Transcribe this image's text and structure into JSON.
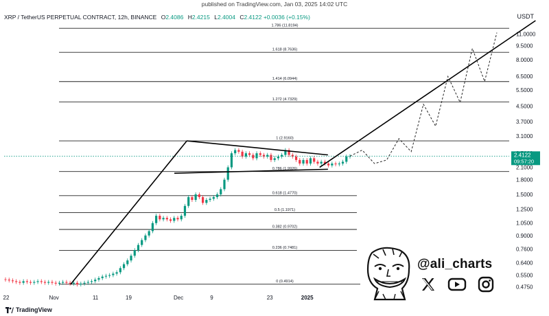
{
  "header": {
    "published": "published on TradingView.com, Jan 03, 2025 14:02 UTC",
    "symbol": "XRP / TetherUS PERPETUAL CONTRACT, 12h, BINANCE",
    "open_label": "O",
    "open": "2.4086",
    "high_label": "H",
    "high": "2.4215",
    "low_label": "L",
    "low": "2.4004",
    "close_label": "C",
    "close": "2.4122",
    "change": "+0.0036 (+0.15%)",
    "quote_currency": "USDT"
  },
  "price_tag": {
    "price": "2.4122",
    "countdown": "09:57:20"
  },
  "branding": {
    "tradingview": "TradingView"
  },
  "author": {
    "handle": "@ali_charts",
    "icons": [
      "x-logo-icon",
      "youtube-icon",
      "instagram-icon"
    ]
  },
  "colors": {
    "up": "#089981",
    "down": "#f23645",
    "line": "#000000",
    "grid_level": "#222222",
    "price_tag": "#089981",
    "dotted_price": "#089981"
  },
  "chart_data": {
    "type": "candlestick",
    "scale": "log",
    "ylim": [
      0.45,
      13
    ],
    "y_ticks": [
      "11.0000",
      "9.5000",
      "8.0000",
      "6.5000",
      "5.5000",
      "4.5000",
      "3.7000",
      "3.1000",
      "2.5000",
      "2.1000",
      "1.8000",
      "1.5000",
      "1.2500",
      "1.0500",
      "0.9000",
      "0.7600",
      "0.6400",
      "0.5500",
      "0.4750"
    ],
    "x_ticks": [
      "22",
      "Nov",
      "11",
      "19",
      "Dec",
      "9",
      "23",
      "2025"
    ],
    "last_price": 2.4122,
    "fib_levels": [
      {
        "label": "1.786 (11.8194)",
        "value": 11.8194
      },
      {
        "label": "1.618 (8.7636)",
        "value": 8.7636
      },
      {
        "label": "1.414 (6.0944)",
        "value": 6.0944
      },
      {
        "label": "1.272 (4.7329)",
        "value": 4.7329
      },
      {
        "label": "1 (2.9160)",
        "value": 2.916
      },
      {
        "label": "0.786 (1.9926)",
        "value": 1.9926
      },
      {
        "label": "0.618 (1.4770)",
        "value": 1.477
      },
      {
        "label": "0.5 (1.1971)",
        "value": 1.1971
      },
      {
        "label": "0.382 (0.9702)",
        "value": 0.9702
      },
      {
        "label": "0.236 (0.7481)",
        "value": 0.7481
      },
      {
        "label": "0 (0.4914)",
        "value": 0.4914
      }
    ],
    "price_path": [
      0.52,
      0.515,
      0.51,
      0.505,
      0.5,
      0.51,
      0.505,
      0.5,
      0.505,
      0.51,
      0.505,
      0.5,
      0.505,
      0.5,
      0.495,
      0.5,
      0.505,
      0.5,
      0.495,
      0.5,
      0.49,
      0.495,
      0.5,
      0.505,
      0.51,
      0.52,
      0.53,
      0.54,
      0.545,
      0.55,
      0.56,
      0.57,
      0.6,
      0.63,
      0.66,
      0.7,
      0.75,
      0.8,
      0.85,
      0.9,
      0.95,
      1.05,
      1.15,
      1.1,
      1.12,
      1.1,
      1.08,
      1.12,
      1.1,
      1.15,
      1.3,
      1.45,
      1.4,
      1.5,
      1.45,
      1.35,
      1.4,
      1.42,
      1.45,
      1.5,
      1.6,
      1.8,
      2.1,
      2.5,
      2.6,
      2.55,
      2.4,
      2.5,
      2.45,
      2.35,
      2.5,
      2.45,
      2.4,
      2.45,
      2.3,
      2.35,
      2.4,
      2.45,
      2.6,
      2.45,
      2.4,
      2.3,
      2.2,
      2.3,
      2.2,
      2.35,
      2.25,
      2.2,
      2.25,
      2.2,
      2.15,
      2.2,
      2.18,
      2.2,
      2.25,
      2.4,
      2.412
    ],
    "trendlines": [
      {
        "from": {
          "x": "Nov 05",
          "y": 0.49
        },
        "to": {
          "x": "Dec 03",
          "y": 2.916
        }
      },
      {
        "from": {
          "x": "Dec 03",
          "y": 2.916
        },
        "to": {
          "x": "Jan 06",
          "y": 2.45
        }
      },
      {
        "from": {
          "x": "Nov 30",
          "y": 1.95
        },
        "to": {
          "x": "Jan 06",
          "y": 2.05
        }
      },
      {
        "from": {
          "x": "Jan 04",
          "y": 2.1
        },
        "to": {
          "x": "Feb 25",
          "y": 13
        }
      }
    ],
    "projection": [
      2.4122,
      2.6,
      2.2,
      2.3,
      3.0,
      2.55,
      4.6,
      3.5,
      6.5,
      4.7,
      9.2,
      6.1,
      11.2
    ]
  }
}
